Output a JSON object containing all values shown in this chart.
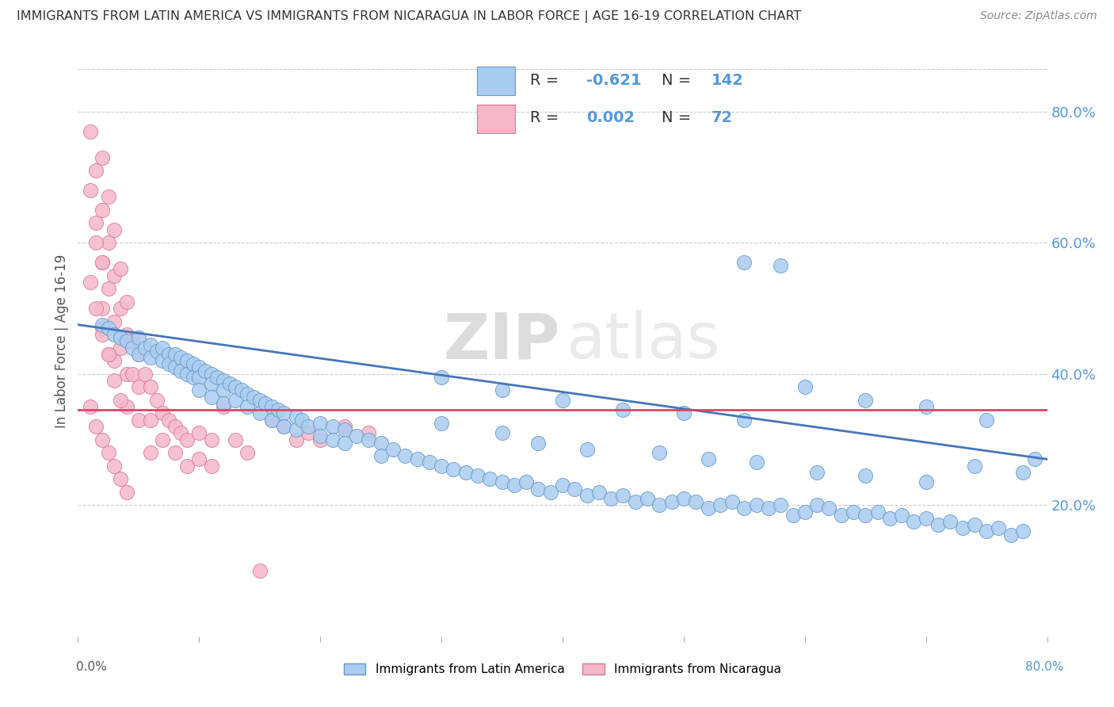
{
  "title": "IMMIGRANTS FROM LATIN AMERICA VS IMMIGRANTS FROM NICARAGUA IN LABOR FORCE | AGE 16-19 CORRELATION CHART",
  "source": "Source: ZipAtlas.com",
  "ylabel": "In Labor Force | Age 16-19",
  "blue_R": -0.621,
  "blue_N": 142,
  "pink_R": 0.002,
  "pink_N": 72,
  "legend_label_blue": "Immigrants from Latin America",
  "legend_label_pink": "Immigrants from Nicaragua",
  "xlim": [
    0.0,
    0.8
  ],
  "ylim": [
    0.0,
    0.9
  ],
  "yticks_right": [
    0.2,
    0.4,
    0.6,
    0.8
  ],
  "ytick_labels_right": [
    "20.0%",
    "40.0%",
    "60.0%",
    "80.0%"
  ],
  "blue_color": "#aaccf0",
  "blue_edge_color": "#6699cc",
  "pink_color": "#f5b8c8",
  "pink_edge_color": "#dd7799",
  "blue_line_color": "#4477bb",
  "pink_line_color": "#dd4466",
  "background_color": "#ffffff",
  "grid_color": "#cccccc",
  "title_color": "#333333",
  "axis_label_color": "#555555",
  "right_tick_color": "#5599dd",
  "blue_line_start_y": 0.475,
  "blue_line_end_y": 0.27,
  "pink_line_y": 0.345,
  "blue_scatter_x": [
    0.02,
    0.025,
    0.03,
    0.035,
    0.04,
    0.045,
    0.05,
    0.05,
    0.055,
    0.06,
    0.06,
    0.065,
    0.07,
    0.07,
    0.075,
    0.075,
    0.08,
    0.08,
    0.085,
    0.085,
    0.09,
    0.09,
    0.095,
    0.095,
    0.1,
    0.1,
    0.1,
    0.105,
    0.11,
    0.11,
    0.11,
    0.115,
    0.12,
    0.12,
    0.12,
    0.125,
    0.13,
    0.13,
    0.135,
    0.14,
    0.14,
    0.145,
    0.15,
    0.15,
    0.155,
    0.16,
    0.16,
    0.165,
    0.17,
    0.17,
    0.18,
    0.18,
    0.185,
    0.19,
    0.2,
    0.2,
    0.21,
    0.21,
    0.22,
    0.22,
    0.23,
    0.24,
    0.25,
    0.25,
    0.26,
    0.27,
    0.28,
    0.29,
    0.3,
    0.31,
    0.32,
    0.33,
    0.34,
    0.35,
    0.36,
    0.37,
    0.38,
    0.39,
    0.4,
    0.41,
    0.42,
    0.43,
    0.44,
    0.45,
    0.46,
    0.47,
    0.48,
    0.49,
    0.5,
    0.51,
    0.52,
    0.53,
    0.54,
    0.55,
    0.56,
    0.57,
    0.58,
    0.59,
    0.6,
    0.61,
    0.62,
    0.63,
    0.64,
    0.65,
    0.66,
    0.67,
    0.68,
    0.69,
    0.7,
    0.71,
    0.72,
    0.73,
    0.74,
    0.75,
    0.76,
    0.77,
    0.78,
    0.79,
    0.3,
    0.35,
    0.4,
    0.45,
    0.5,
    0.55,
    0.6,
    0.65,
    0.7,
    0.75,
    0.3,
    0.35,
    0.38,
    0.42,
    0.48,
    0.52,
    0.56,
    0.61,
    0.65,
    0.7,
    0.74,
    0.78,
    0.55,
    0.58
  ],
  "blue_scatter_y": [
    0.475,
    0.47,
    0.46,
    0.455,
    0.45,
    0.44,
    0.455,
    0.43,
    0.44,
    0.445,
    0.425,
    0.435,
    0.44,
    0.42,
    0.43,
    0.415,
    0.43,
    0.41,
    0.425,
    0.405,
    0.42,
    0.4,
    0.415,
    0.395,
    0.41,
    0.395,
    0.375,
    0.405,
    0.4,
    0.385,
    0.365,
    0.395,
    0.39,
    0.375,
    0.355,
    0.385,
    0.38,
    0.36,
    0.375,
    0.37,
    0.35,
    0.365,
    0.36,
    0.34,
    0.355,
    0.35,
    0.33,
    0.345,
    0.34,
    0.32,
    0.335,
    0.315,
    0.33,
    0.32,
    0.325,
    0.305,
    0.32,
    0.3,
    0.315,
    0.295,
    0.305,
    0.3,
    0.295,
    0.275,
    0.285,
    0.275,
    0.27,
    0.265,
    0.26,
    0.255,
    0.25,
    0.245,
    0.24,
    0.235,
    0.23,
    0.235,
    0.225,
    0.22,
    0.23,
    0.225,
    0.215,
    0.22,
    0.21,
    0.215,
    0.205,
    0.21,
    0.2,
    0.205,
    0.21,
    0.205,
    0.195,
    0.2,
    0.205,
    0.195,
    0.2,
    0.195,
    0.2,
    0.185,
    0.19,
    0.2,
    0.195,
    0.185,
    0.19,
    0.185,
    0.19,
    0.18,
    0.185,
    0.175,
    0.18,
    0.17,
    0.175,
    0.165,
    0.17,
    0.16,
    0.165,
    0.155,
    0.16,
    0.27,
    0.395,
    0.375,
    0.36,
    0.345,
    0.34,
    0.33,
    0.38,
    0.36,
    0.35,
    0.33,
    0.325,
    0.31,
    0.295,
    0.285,
    0.28,
    0.27,
    0.265,
    0.25,
    0.245,
    0.235,
    0.26,
    0.25,
    0.57,
    0.565
  ],
  "pink_scatter_x": [
    0.01,
    0.01,
    0.015,
    0.015,
    0.02,
    0.02,
    0.02,
    0.02,
    0.025,
    0.025,
    0.025,
    0.03,
    0.03,
    0.03,
    0.03,
    0.035,
    0.035,
    0.035,
    0.04,
    0.04,
    0.04,
    0.04,
    0.045,
    0.045,
    0.05,
    0.05,
    0.05,
    0.055,
    0.06,
    0.06,
    0.06,
    0.065,
    0.07,
    0.07,
    0.075,
    0.08,
    0.08,
    0.085,
    0.09,
    0.09,
    0.1,
    0.1,
    0.11,
    0.11,
    0.12,
    0.13,
    0.14,
    0.15,
    0.16,
    0.17,
    0.18,
    0.19,
    0.2,
    0.22,
    0.24,
    0.01,
    0.015,
    0.02,
    0.025,
    0.03,
    0.035,
    0.04,
    0.02,
    0.025,
    0.03,
    0.035,
    0.01,
    0.015,
    0.02,
    0.025,
    0.015,
    0.02
  ],
  "pink_scatter_y": [
    0.77,
    0.68,
    0.71,
    0.63,
    0.73,
    0.65,
    0.57,
    0.5,
    0.67,
    0.6,
    0.53,
    0.62,
    0.55,
    0.48,
    0.42,
    0.56,
    0.5,
    0.44,
    0.51,
    0.46,
    0.4,
    0.35,
    0.45,
    0.4,
    0.43,
    0.38,
    0.33,
    0.4,
    0.38,
    0.33,
    0.28,
    0.36,
    0.34,
    0.3,
    0.33,
    0.32,
    0.28,
    0.31,
    0.3,
    0.26,
    0.31,
    0.27,
    0.3,
    0.26,
    0.35,
    0.3,
    0.28,
    0.1,
    0.33,
    0.32,
    0.3,
    0.31,
    0.3,
    0.32,
    0.31,
    0.35,
    0.32,
    0.3,
    0.28,
    0.26,
    0.24,
    0.22,
    0.47,
    0.43,
    0.39,
    0.36,
    0.54,
    0.5,
    0.46,
    0.43,
    0.6,
    0.57
  ]
}
